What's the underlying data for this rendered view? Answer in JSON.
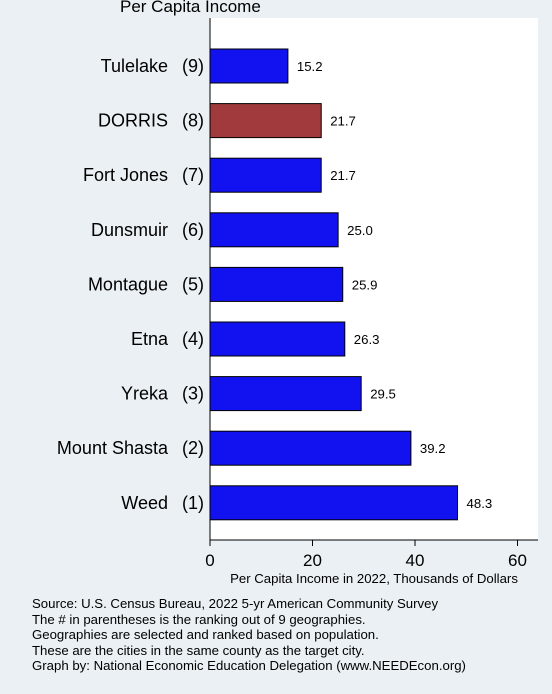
{
  "chart_data": {
    "type": "bar",
    "orientation": "horizontal",
    "title": "Per Capita Income",
    "categories": [
      {
        "name": "Tulelake",
        "rank": "(9)"
      },
      {
        "name": "DORRIS",
        "rank": "(8)"
      },
      {
        "name": "Fort Jones",
        "rank": "(7)"
      },
      {
        "name": "Dunsmuir",
        "rank": "(6)"
      },
      {
        "name": "Montague",
        "rank": "(5)"
      },
      {
        "name": "Etna",
        "rank": "(4)"
      },
      {
        "name": "Yreka",
        "rank": "(3)"
      },
      {
        "name": "Mount Shasta",
        "rank": "(2)"
      },
      {
        "name": "Weed",
        "rank": "(1)"
      }
    ],
    "values": [
      15.2,
      21.7,
      21.7,
      25.0,
      25.9,
      26.3,
      29.5,
      39.2,
      48.3
    ],
    "value_labels": [
      "15.2",
      "21.7",
      "21.7",
      "25.0",
      "25.9",
      "26.3",
      "29.5",
      "39.2",
      "48.3"
    ],
    "highlight_index": 1,
    "xlabel": "Per Capita Income in 2022, Thousands of Dollars",
    "xlim": [
      0,
      64
    ],
    "xticks": [
      0,
      20,
      40,
      60
    ],
    "grid": false,
    "colors": {
      "bar": "#1212f0",
      "highlight": "#a03a3c",
      "plot_bg": "#ffffff",
      "page_bg": "#eaf0f3"
    }
  },
  "source_lines": [
    "Source: U.S. Census Bureau, 2022 5-yr American Community Survey",
    "The # in parentheses is the ranking out of 9 geographies.",
    "Geographies are selected and ranked based on population.",
    "These are the cities in the same county as the target city.",
    "Graph by: National Economic Education Delegation (www.NEEDEcon.org)"
  ]
}
